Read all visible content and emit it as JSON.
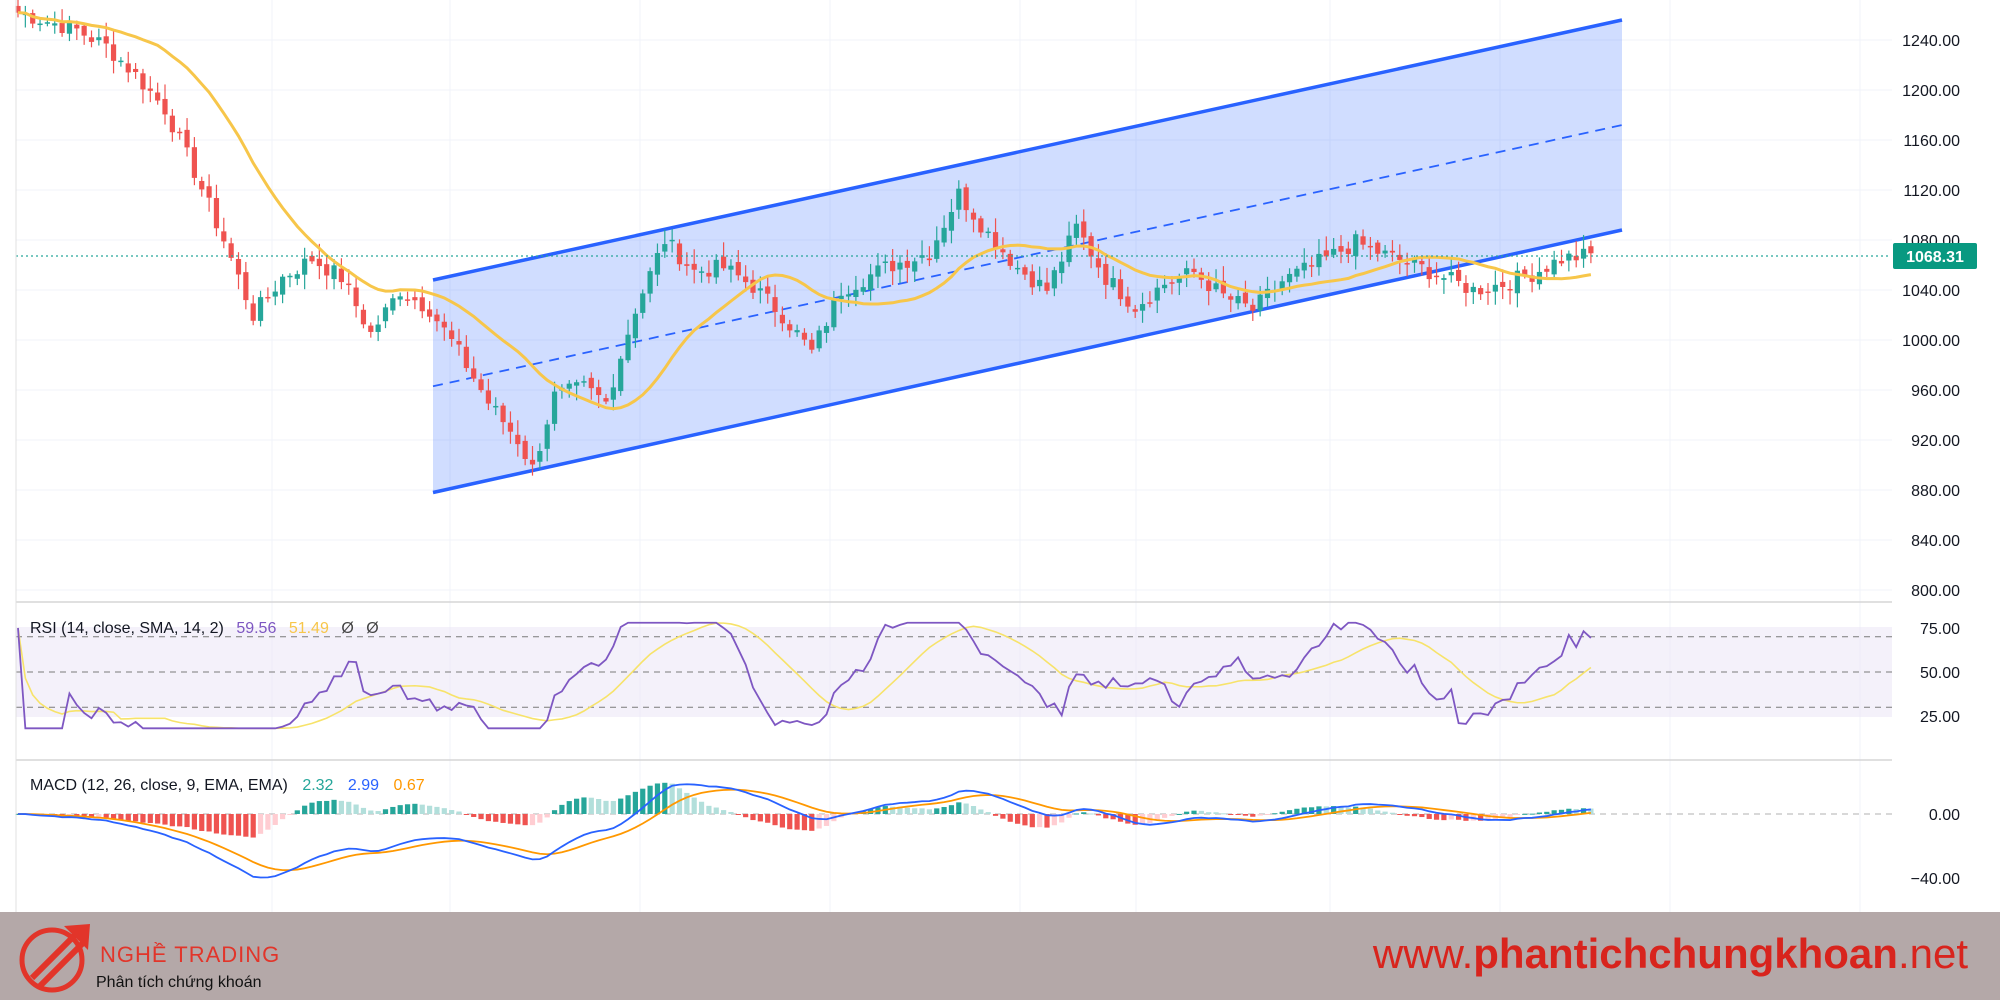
{
  "chart_data": {
    "type": "candlestick",
    "current_price": "1068.31",
    "panels": [
      {
        "id": "price",
        "y_ticks": [
          "1240.00",
          "1200.00",
          "1160.00",
          "1120.00",
          "1080.00",
          "1040.00",
          "1000.00",
          "960.00",
          "920.00",
          "880.00",
          "840.00",
          "800.00"
        ],
        "y_range": [
          790,
          1272
        ],
        "overlay": "SMA (yellow)",
        "channel": {
          "lower_start": 878,
          "lower_end": 1088,
          "upper_start": 1048,
          "upper_end": 1256
        }
      },
      {
        "id": "rsi",
        "legend_name": "RSI (14, close, SMA, 14, 2)",
        "legend_values": [
          "59.56",
          "51.49",
          "Ø",
          "Ø"
        ],
        "y_ticks": [
          "75.00",
          "50.00",
          "25.00"
        ],
        "band": [
          30,
          70
        ]
      },
      {
        "id": "macd",
        "legend_name": "MACD (12, 26, close, 9, EMA, EMA)",
        "legend_values": [
          "2.32",
          "2.99",
          "0.67"
        ],
        "y_ticks": [
          "0.00",
          "−40.00"
        ]
      }
    ],
    "close_waypoints": [
      [
        0,
        1262
      ],
      [
        8,
        1248
      ],
      [
        12,
        1235
      ],
      [
        16,
        1212
      ],
      [
        20,
        1185
      ],
      [
        24,
        1135
      ],
      [
        28,
        1080
      ],
      [
        32,
        1020
      ],
      [
        36,
        1050
      ],
      [
        40,
        1065
      ],
      [
        44,
        1050
      ],
      [
        48,
        1005
      ],
      [
        52,
        1040
      ],
      [
        56,
        1025
      ],
      [
        60,
        990
      ],
      [
        64,
        950
      ],
      [
        68,
        920
      ],
      [
        70,
        897
      ],
      [
        73,
        955
      ],
      [
        77,
        962
      ],
      [
        80,
        950
      ],
      [
        84,
        1025
      ],
      [
        88,
        1080
      ],
      [
        92,
        1055
      ],
      [
        96,
        1058
      ],
      [
        100,
        1043
      ],
      [
        104,
        1020
      ],
      [
        108,
        990
      ],
      [
        112,
        1040
      ],
      [
        118,
        1058
      ],
      [
        124,
        1070
      ],
      [
        128,
        1117
      ],
      [
        132,
        1085
      ],
      [
        136,
        1058
      ],
      [
        140,
        1040
      ],
      [
        144,
        1090
      ],
      [
        148,
        1050
      ],
      [
        152,
        1027
      ],
      [
        156,
        1045
      ],
      [
        160,
        1054
      ],
      [
        164,
        1035
      ],
      [
        168,
        1024
      ],
      [
        172,
        1047
      ],
      [
        178,
        1065
      ],
      [
        182,
        1078
      ],
      [
        186,
        1068
      ],
      [
        190,
        1060
      ],
      [
        194,
        1050
      ],
      [
        198,
        1040
      ],
      [
        202,
        1045
      ],
      [
        206,
        1053
      ],
      [
        210,
        1065
      ],
      [
        214,
        1068
      ]
    ],
    "colors": {
      "up": "#26a69a",
      "down": "#ef5350",
      "sma": "#f7c64a",
      "channel": "#2962ff",
      "rsi": "#7e57c2",
      "macd": "#2962ff",
      "signal": "#ff9800"
    }
  },
  "footer": {
    "brand_name": "NGHỀ TRADING",
    "brand_tagline": "Phân tích chứng khoán",
    "url_prefix": "www.",
    "url_bold": "phantichchungkhoan",
    "url_suffix": ".net"
  }
}
